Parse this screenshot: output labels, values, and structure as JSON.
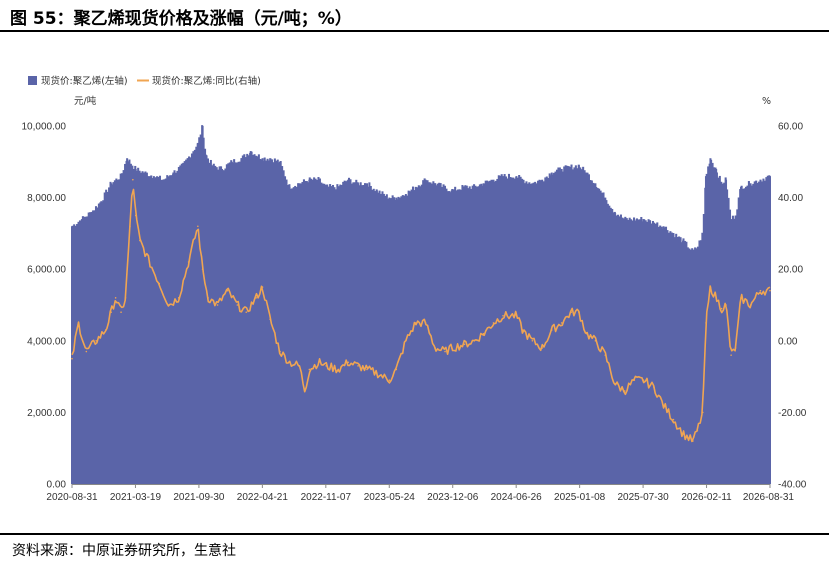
{
  "figure": {
    "title": "图 55：聚乙烯现货价格及涨幅（元/吨；%）",
    "source": "资料来源：中原证券研究所，生意社"
  },
  "colors": {
    "bar": "#5a64a8",
    "line": "#f0a552",
    "axis": "#888888"
  },
  "chart_data": {
    "type": "bar+line",
    "title": "",
    "legend": {
      "placement": "top-left",
      "entries": [
        "现货价:聚乙烯(左轴)",
        "现货价:聚乙烯:同比(右轴)"
      ]
    },
    "left_axis": {
      "unit": "元/吨",
      "ylim": [
        0,
        10000
      ],
      "ticks": [
        "0.00",
        "2,000.00",
        "4,000.00",
        "6,000.00",
        "8,000.00",
        "10,000.00"
      ]
    },
    "right_axis": {
      "unit": "%",
      "ylim": [
        -40,
        60
      ],
      "ticks": [
        "-40.00",
        "-20.00",
        "0.00",
        "20.00",
        "40.00",
        "60.00"
      ]
    },
    "x_tick_labels": [
      "2020-08-31",
      "2021-03-19",
      "2021-09-30",
      "2022-04-21",
      "2022-11-07",
      "2023-05-24",
      "2023-12-06",
      "2024-06-26",
      "2025-01-08",
      "2025-07-30",
      "2026-02-11",
      "2026-08-31"
    ],
    "x_range": [
      "2020-08-31",
      "2026-08-31"
    ],
    "grid": false,
    "series": [
      {
        "name": "现货价:聚乙烯(左轴)",
        "kind": "bar",
        "points": [
          [
            "2020-08-31",
            7200
          ],
          [
            "2020-10-01",
            7400
          ],
          [
            "2020-11-01",
            7600
          ],
          [
            "2020-12-01",
            7900
          ],
          [
            "2021-01-01",
            8400
          ],
          [
            "2021-02-01",
            8600
          ],
          [
            "2021-02-20",
            9100
          ],
          [
            "2021-03-19",
            8800
          ],
          [
            "2021-04-15",
            8700
          ],
          [
            "2021-05-15",
            8600
          ],
          [
            "2021-06-15",
            8500
          ],
          [
            "2021-07-15",
            8700
          ],
          [
            "2021-08-15",
            8900
          ],
          [
            "2021-09-30",
            9500
          ],
          [
            "2021-10-15",
            10000
          ],
          [
            "2021-10-25",
            9200
          ],
          [
            "2021-11-15",
            8900
          ],
          [
            "2021-12-15",
            8800
          ],
          [
            "2022-01-15",
            9000
          ],
          [
            "2022-02-15",
            9100
          ],
          [
            "2022-03-15",
            9300
          ],
          [
            "2022-04-21",
            9100
          ],
          [
            "2022-05-15",
            9100
          ],
          [
            "2022-06-15",
            9000
          ],
          [
            "2022-07-15",
            8300
          ],
          [
            "2022-08-15",
            8400
          ],
          [
            "2022-09-15",
            8500
          ],
          [
            "2022-10-15",
            8500
          ],
          [
            "2022-11-07",
            8300
          ],
          [
            "2022-12-15",
            8300
          ],
          [
            "2023-01-15",
            8500
          ],
          [
            "2023-02-15",
            8400
          ],
          [
            "2023-03-15",
            8400
          ],
          [
            "2023-04-15",
            8200
          ],
          [
            "2023-05-24",
            8000
          ],
          [
            "2023-06-15",
            8000
          ],
          [
            "2023-07-15",
            8100
          ],
          [
            "2023-08-15",
            8300
          ],
          [
            "2023-09-15",
            8500
          ],
          [
            "2023-10-15",
            8400
          ],
          [
            "2023-12-06",
            8200
          ],
          [
            "2024-01-15",
            8300
          ],
          [
            "2024-02-15",
            8300
          ],
          [
            "2024-03-15",
            8400
          ],
          [
            "2024-04-15",
            8500
          ],
          [
            "2024-05-15",
            8600
          ],
          [
            "2024-06-26",
            8600
          ],
          [
            "2024-07-15",
            8500
          ],
          [
            "2024-08-15",
            8400
          ],
          [
            "2024-09-15",
            8500
          ],
          [
            "2024-10-15",
            8700
          ],
          [
            "2024-11-15",
            8800
          ],
          [
            "2025-01-08",
            8900
          ],
          [
            "2025-02-01",
            8700
          ],
          [
            "2025-03-01",
            8400
          ],
          [
            "2025-04-01",
            8000
          ],
          [
            "2025-05-01",
            7600
          ],
          [
            "2025-06-01",
            7400
          ],
          [
            "2025-07-01",
            7400
          ],
          [
            "2025-07-30",
            7400
          ],
          [
            "2025-09-01",
            7300
          ],
          [
            "2025-10-01",
            7200
          ],
          [
            "2025-11-01",
            7000
          ],
          [
            "2025-12-01",
            6800
          ],
          [
            "2026-01-01",
            6500
          ],
          [
            "2026-01-15",
            6600
          ],
          [
            "2026-02-01",
            7000
          ],
          [
            "2026-02-11",
            8600
          ],
          [
            "2026-02-25",
            9100
          ],
          [
            "2026-03-15",
            8800
          ],
          [
            "2026-04-01",
            8400
          ],
          [
            "2026-04-15",
            8500
          ],
          [
            "2026-05-01",
            7400
          ],
          [
            "2026-05-15",
            7500
          ],
          [
            "2026-06-01",
            8300
          ],
          [
            "2026-07-01",
            8400
          ],
          [
            "2026-08-01",
            8500
          ],
          [
            "2026-08-31",
            8600
          ]
        ]
      },
      {
        "name": "现货价:聚乙烯:同比(右轴)",
        "kind": "line",
        "points": [
          [
            "2020-08-31",
            -5
          ],
          [
            "2020-09-20",
            5
          ],
          [
            "2020-10-15",
            -3
          ],
          [
            "2020-11-15",
            0
          ],
          [
            "2020-12-15",
            3
          ],
          [
            "2021-01-01",
            8
          ],
          [
            "2021-01-15",
            12
          ],
          [
            "2021-02-01",
            8
          ],
          [
            "2021-02-15",
            12
          ],
          [
            "2021-03-01",
            32
          ],
          [
            "2021-03-10",
            45
          ],
          [
            "2021-03-19",
            35
          ],
          [
            "2021-04-01",
            28
          ],
          [
            "2021-05-01",
            22
          ],
          [
            "2021-06-01",
            16
          ],
          [
            "2021-07-01",
            10
          ],
          [
            "2021-08-01",
            12
          ],
          [
            "2021-09-01",
            22
          ],
          [
            "2021-09-30",
            32
          ],
          [
            "2021-10-15",
            20
          ],
          [
            "2021-11-01",
            12
          ],
          [
            "2021-12-01",
            10
          ],
          [
            "2022-01-01",
            14
          ],
          [
            "2022-02-01",
            10
          ],
          [
            "2022-03-01",
            8
          ],
          [
            "2022-04-01",
            12
          ],
          [
            "2022-04-21",
            15
          ],
          [
            "2022-05-15",
            6
          ],
          [
            "2022-06-15",
            -3
          ],
          [
            "2022-07-15",
            -6
          ],
          [
            "2022-08-15",
            -7
          ],
          [
            "2022-09-01",
            -14
          ],
          [
            "2022-09-15",
            -8
          ],
          [
            "2022-10-15",
            -6
          ],
          [
            "2022-11-07",
            -7
          ],
          [
            "2022-12-15",
            -8
          ],
          [
            "2023-01-15",
            -6
          ],
          [
            "2023-02-15",
            -7
          ],
          [
            "2023-03-15",
            -8
          ],
          [
            "2023-04-15",
            -9
          ],
          [
            "2023-05-24",
            -11
          ],
          [
            "2023-06-15",
            -8
          ],
          [
            "2023-07-15",
            0
          ],
          [
            "2023-08-15",
            5
          ],
          [
            "2023-09-15",
            5
          ],
          [
            "2023-10-15",
            -2
          ],
          [
            "2023-11-15",
            -3
          ],
          [
            "2023-12-06",
            -2
          ],
          [
            "2024-01-15",
            -1
          ],
          [
            "2024-02-15",
            0
          ],
          [
            "2024-03-15",
            2
          ],
          [
            "2024-04-15",
            5
          ],
          [
            "2024-05-15",
            7
          ],
          [
            "2024-06-26",
            7
          ],
          [
            "2024-07-15",
            3
          ],
          [
            "2024-08-15",
            0
          ],
          [
            "2024-09-15",
            -2
          ],
          [
            "2024-10-15",
            3
          ],
          [
            "2024-11-15",
            5
          ],
          [
            "2024-12-15",
            8
          ],
          [
            "2025-01-08",
            8
          ],
          [
            "2025-02-01",
            2
          ],
          [
            "2025-03-01",
            0
          ],
          [
            "2025-04-01",
            -4
          ],
          [
            "2025-05-01",
            -12
          ],
          [
            "2025-06-01",
            -14
          ],
          [
            "2025-07-01",
            -11
          ],
          [
            "2025-07-30",
            -11
          ],
          [
            "2025-09-01",
            -13
          ],
          [
            "2025-10-01",
            -18
          ],
          [
            "2025-11-01",
            -22
          ],
          [
            "2025-12-01",
            -26
          ],
          [
            "2026-01-01",
            -28
          ],
          [
            "2026-01-15",
            -25
          ],
          [
            "2026-02-01",
            -20
          ],
          [
            "2026-02-11",
            5
          ],
          [
            "2026-02-25",
            15
          ],
          [
            "2026-03-15",
            12
          ],
          [
            "2026-04-01",
            9
          ],
          [
            "2026-04-15",
            10
          ],
          [
            "2026-05-01",
            -4
          ],
          [
            "2026-05-15",
            -2
          ],
          [
            "2026-06-01",
            12
          ],
          [
            "2026-07-01",
            10
          ],
          [
            "2026-08-01",
            14
          ],
          [
            "2026-08-31",
            14
          ]
        ]
      }
    ]
  }
}
